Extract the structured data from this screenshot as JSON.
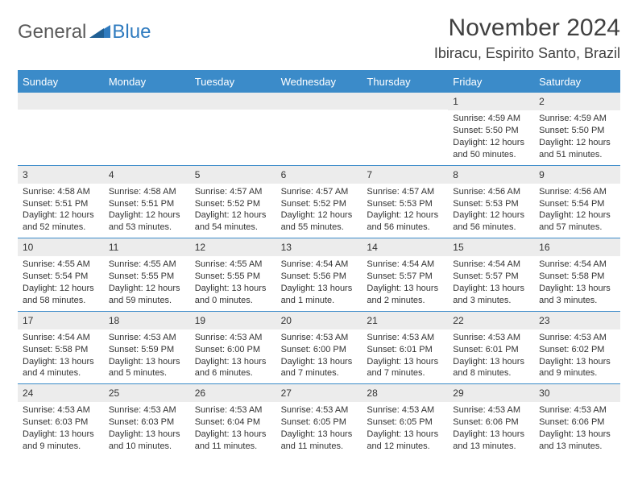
{
  "brand": {
    "general": "General",
    "blue": "Blue"
  },
  "title": "November 2024",
  "location": "Ibiracu, Espirito Santo, Brazil",
  "colors": {
    "header_bg": "#3b8bc9",
    "header_text": "#ffffff",
    "daynum_bg": "#ececec",
    "border": "#3b8bc9",
    "text": "#333333",
    "logo_gray": "#5a5a5a",
    "logo_blue": "#2f7bbf"
  },
  "day_names": [
    "Sunday",
    "Monday",
    "Tuesday",
    "Wednesday",
    "Thursday",
    "Friday",
    "Saturday"
  ],
  "weeks": [
    [
      {
        "n": "",
        "sunrise": "",
        "sunset": "",
        "daylight": ""
      },
      {
        "n": "",
        "sunrise": "",
        "sunset": "",
        "daylight": ""
      },
      {
        "n": "",
        "sunrise": "",
        "sunset": "",
        "daylight": ""
      },
      {
        "n": "",
        "sunrise": "",
        "sunset": "",
        "daylight": ""
      },
      {
        "n": "",
        "sunrise": "",
        "sunset": "",
        "daylight": ""
      },
      {
        "n": "1",
        "sunrise": "Sunrise: 4:59 AM",
        "sunset": "Sunset: 5:50 PM",
        "daylight": "Daylight: 12 hours and 50 minutes."
      },
      {
        "n": "2",
        "sunrise": "Sunrise: 4:59 AM",
        "sunset": "Sunset: 5:50 PM",
        "daylight": "Daylight: 12 hours and 51 minutes."
      }
    ],
    [
      {
        "n": "3",
        "sunrise": "Sunrise: 4:58 AM",
        "sunset": "Sunset: 5:51 PM",
        "daylight": "Daylight: 12 hours and 52 minutes."
      },
      {
        "n": "4",
        "sunrise": "Sunrise: 4:58 AM",
        "sunset": "Sunset: 5:51 PM",
        "daylight": "Daylight: 12 hours and 53 minutes."
      },
      {
        "n": "5",
        "sunrise": "Sunrise: 4:57 AM",
        "sunset": "Sunset: 5:52 PM",
        "daylight": "Daylight: 12 hours and 54 minutes."
      },
      {
        "n": "6",
        "sunrise": "Sunrise: 4:57 AM",
        "sunset": "Sunset: 5:52 PM",
        "daylight": "Daylight: 12 hours and 55 minutes."
      },
      {
        "n": "7",
        "sunrise": "Sunrise: 4:57 AM",
        "sunset": "Sunset: 5:53 PM",
        "daylight": "Daylight: 12 hours and 56 minutes."
      },
      {
        "n": "8",
        "sunrise": "Sunrise: 4:56 AM",
        "sunset": "Sunset: 5:53 PM",
        "daylight": "Daylight: 12 hours and 56 minutes."
      },
      {
        "n": "9",
        "sunrise": "Sunrise: 4:56 AM",
        "sunset": "Sunset: 5:54 PM",
        "daylight": "Daylight: 12 hours and 57 minutes."
      }
    ],
    [
      {
        "n": "10",
        "sunrise": "Sunrise: 4:55 AM",
        "sunset": "Sunset: 5:54 PM",
        "daylight": "Daylight: 12 hours and 58 minutes."
      },
      {
        "n": "11",
        "sunrise": "Sunrise: 4:55 AM",
        "sunset": "Sunset: 5:55 PM",
        "daylight": "Daylight: 12 hours and 59 minutes."
      },
      {
        "n": "12",
        "sunrise": "Sunrise: 4:55 AM",
        "sunset": "Sunset: 5:55 PM",
        "daylight": "Daylight: 13 hours and 0 minutes."
      },
      {
        "n": "13",
        "sunrise": "Sunrise: 4:54 AM",
        "sunset": "Sunset: 5:56 PM",
        "daylight": "Daylight: 13 hours and 1 minute."
      },
      {
        "n": "14",
        "sunrise": "Sunrise: 4:54 AM",
        "sunset": "Sunset: 5:57 PM",
        "daylight": "Daylight: 13 hours and 2 minutes."
      },
      {
        "n": "15",
        "sunrise": "Sunrise: 4:54 AM",
        "sunset": "Sunset: 5:57 PM",
        "daylight": "Daylight: 13 hours and 3 minutes."
      },
      {
        "n": "16",
        "sunrise": "Sunrise: 4:54 AM",
        "sunset": "Sunset: 5:58 PM",
        "daylight": "Daylight: 13 hours and 3 minutes."
      }
    ],
    [
      {
        "n": "17",
        "sunrise": "Sunrise: 4:54 AM",
        "sunset": "Sunset: 5:58 PM",
        "daylight": "Daylight: 13 hours and 4 minutes."
      },
      {
        "n": "18",
        "sunrise": "Sunrise: 4:53 AM",
        "sunset": "Sunset: 5:59 PM",
        "daylight": "Daylight: 13 hours and 5 minutes."
      },
      {
        "n": "19",
        "sunrise": "Sunrise: 4:53 AM",
        "sunset": "Sunset: 6:00 PM",
        "daylight": "Daylight: 13 hours and 6 minutes."
      },
      {
        "n": "20",
        "sunrise": "Sunrise: 4:53 AM",
        "sunset": "Sunset: 6:00 PM",
        "daylight": "Daylight: 13 hours and 7 minutes."
      },
      {
        "n": "21",
        "sunrise": "Sunrise: 4:53 AM",
        "sunset": "Sunset: 6:01 PM",
        "daylight": "Daylight: 13 hours and 7 minutes."
      },
      {
        "n": "22",
        "sunrise": "Sunrise: 4:53 AM",
        "sunset": "Sunset: 6:01 PM",
        "daylight": "Daylight: 13 hours and 8 minutes."
      },
      {
        "n": "23",
        "sunrise": "Sunrise: 4:53 AM",
        "sunset": "Sunset: 6:02 PM",
        "daylight": "Daylight: 13 hours and 9 minutes."
      }
    ],
    [
      {
        "n": "24",
        "sunrise": "Sunrise: 4:53 AM",
        "sunset": "Sunset: 6:03 PM",
        "daylight": "Daylight: 13 hours and 9 minutes."
      },
      {
        "n": "25",
        "sunrise": "Sunrise: 4:53 AM",
        "sunset": "Sunset: 6:03 PM",
        "daylight": "Daylight: 13 hours and 10 minutes."
      },
      {
        "n": "26",
        "sunrise": "Sunrise: 4:53 AM",
        "sunset": "Sunset: 6:04 PM",
        "daylight": "Daylight: 13 hours and 11 minutes."
      },
      {
        "n": "27",
        "sunrise": "Sunrise: 4:53 AM",
        "sunset": "Sunset: 6:05 PM",
        "daylight": "Daylight: 13 hours and 11 minutes."
      },
      {
        "n": "28",
        "sunrise": "Sunrise: 4:53 AM",
        "sunset": "Sunset: 6:05 PM",
        "daylight": "Daylight: 13 hours and 12 minutes."
      },
      {
        "n": "29",
        "sunrise": "Sunrise: 4:53 AM",
        "sunset": "Sunset: 6:06 PM",
        "daylight": "Daylight: 13 hours and 13 minutes."
      },
      {
        "n": "30",
        "sunrise": "Sunrise: 4:53 AM",
        "sunset": "Sunset: 6:06 PM",
        "daylight": "Daylight: 13 hours and 13 minutes."
      }
    ]
  ]
}
